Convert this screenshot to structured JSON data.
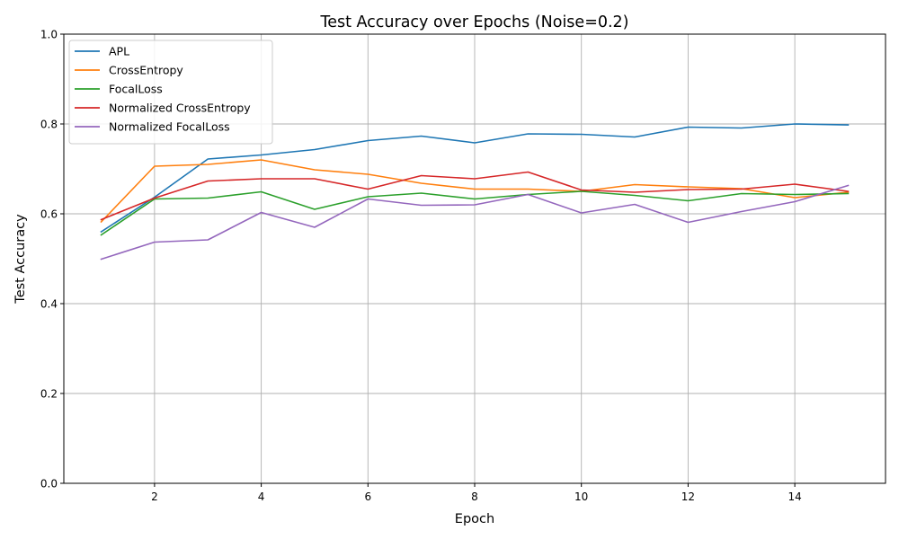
{
  "chart_data": {
    "type": "line",
    "title": "Test Accuracy over Epochs (Noise=0.2)",
    "xlabel": "Epoch",
    "ylabel": "Test Accuracy",
    "x": [
      1,
      2,
      3,
      4,
      5,
      6,
      7,
      8,
      9,
      10,
      11,
      12,
      13,
      14,
      15
    ],
    "xlim": [
      0.3,
      15.7
    ],
    "ylim": [
      0.0,
      1.0
    ],
    "xticks": [
      2,
      4,
      6,
      8,
      10,
      12,
      14
    ],
    "xtick_labels": [
      "2",
      "4",
      "6",
      "8",
      "10",
      "12",
      "14"
    ],
    "yticks": [
      0.0,
      0.2,
      0.4,
      0.6,
      0.8,
      1.0
    ],
    "ytick_labels": [
      "0.0",
      "0.2",
      "0.4",
      "0.6",
      "0.8",
      "1.0"
    ],
    "grid": true,
    "legend_position": "top-left",
    "series": [
      {
        "name": "APL",
        "color": "#1f77b4",
        "values": [
          0.56,
          0.637,
          0.722,
          0.731,
          0.743,
          0.763,
          0.773,
          0.758,
          0.778,
          0.777,
          0.771,
          0.793,
          0.791,
          0.8,
          0.798
        ]
      },
      {
        "name": "CrossEntropy",
        "color": "#ff7f0e",
        "values": [
          0.582,
          0.706,
          0.71,
          0.72,
          0.698,
          0.688,
          0.668,
          0.655,
          0.655,
          0.65,
          0.665,
          0.66,
          0.656,
          0.636,
          0.648
        ]
      },
      {
        "name": "FocalLoss",
        "color": "#2ca02c",
        "values": [
          0.553,
          0.633,
          0.635,
          0.649,
          0.61,
          0.638,
          0.646,
          0.633,
          0.643,
          0.65,
          0.641,
          0.629,
          0.645,
          0.643,
          0.645
        ]
      },
      {
        "name": "Normalized CrossEntropy",
        "color": "#d62728",
        "values": [
          0.587,
          0.635,
          0.673,
          0.678,
          0.678,
          0.655,
          0.685,
          0.678,
          0.693,
          0.653,
          0.648,
          0.654,
          0.655,
          0.666,
          0.65
        ]
      },
      {
        "name": "Normalized FocalLoss",
        "color": "#9467bd",
        "values": [
          0.499,
          0.537,
          0.542,
          0.603,
          0.57,
          0.633,
          0.619,
          0.62,
          0.643,
          0.602,
          0.621,
          0.581,
          0.605,
          0.627,
          0.663
        ]
      }
    ]
  }
}
